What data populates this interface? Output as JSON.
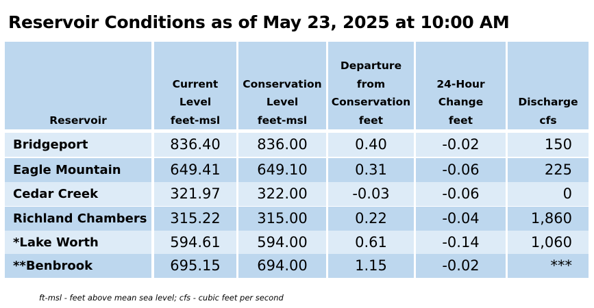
{
  "title": "Reservoir Conditions as of May 23, 2025 at 10:00 AM",
  "columns": [
    {
      "lines": [
        "Reservoir"
      ]
    },
    {
      "lines": [
        "Current",
        "Level",
        "feet-msl"
      ]
    },
    {
      "lines": [
        "Conservation",
        "Level",
        "feet-msl"
      ]
    },
    {
      "lines": [
        "Departure",
        "from",
        "Conservation",
        "feet"
      ]
    },
    {
      "lines": [
        "24-Hour",
        "Change",
        "feet"
      ]
    },
    {
      "lines": [
        "Discharge",
        "cfs"
      ]
    }
  ],
  "rows": [
    {
      "reservoir": "Bridgeport",
      "current": "836.40",
      "conservation": "836.00",
      "departure": "0.40",
      "change": "-0.02",
      "discharge": "150"
    },
    {
      "reservoir": "Eagle Mountain",
      "current": "649.41",
      "conservation": "649.10",
      "departure": "0.31",
      "change": "-0.06",
      "discharge": "225"
    },
    {
      "reservoir": "Cedar Creek",
      "current": "321.97",
      "conservation": "322.00",
      "departure": "-0.03",
      "change": "-0.06",
      "discharge": "0"
    },
    {
      "reservoir": "Richland Chambers",
      "current": "315.22",
      "conservation": "315.00",
      "departure": "0.22",
      "change": "-0.04",
      "discharge": "1,860"
    },
    {
      "reservoir": "*Lake Worth",
      "current": "594.61",
      "conservation": "594.00",
      "departure": "0.61",
      "change": "-0.14",
      "discharge": "1,060"
    },
    {
      "reservoir": "**Benbrook",
      "current": "695.15",
      "conservation": "694.00",
      "departure": "1.15",
      "change": "-0.02",
      "discharge": "***"
    }
  ],
  "footnote": "ft-msl - feet above mean sea level; cfs - cubic feet per second",
  "colors": {
    "header_bg": "#bdd7ee",
    "row_light": "#ddebf7",
    "row_dark": "#bdd7ee"
  }
}
